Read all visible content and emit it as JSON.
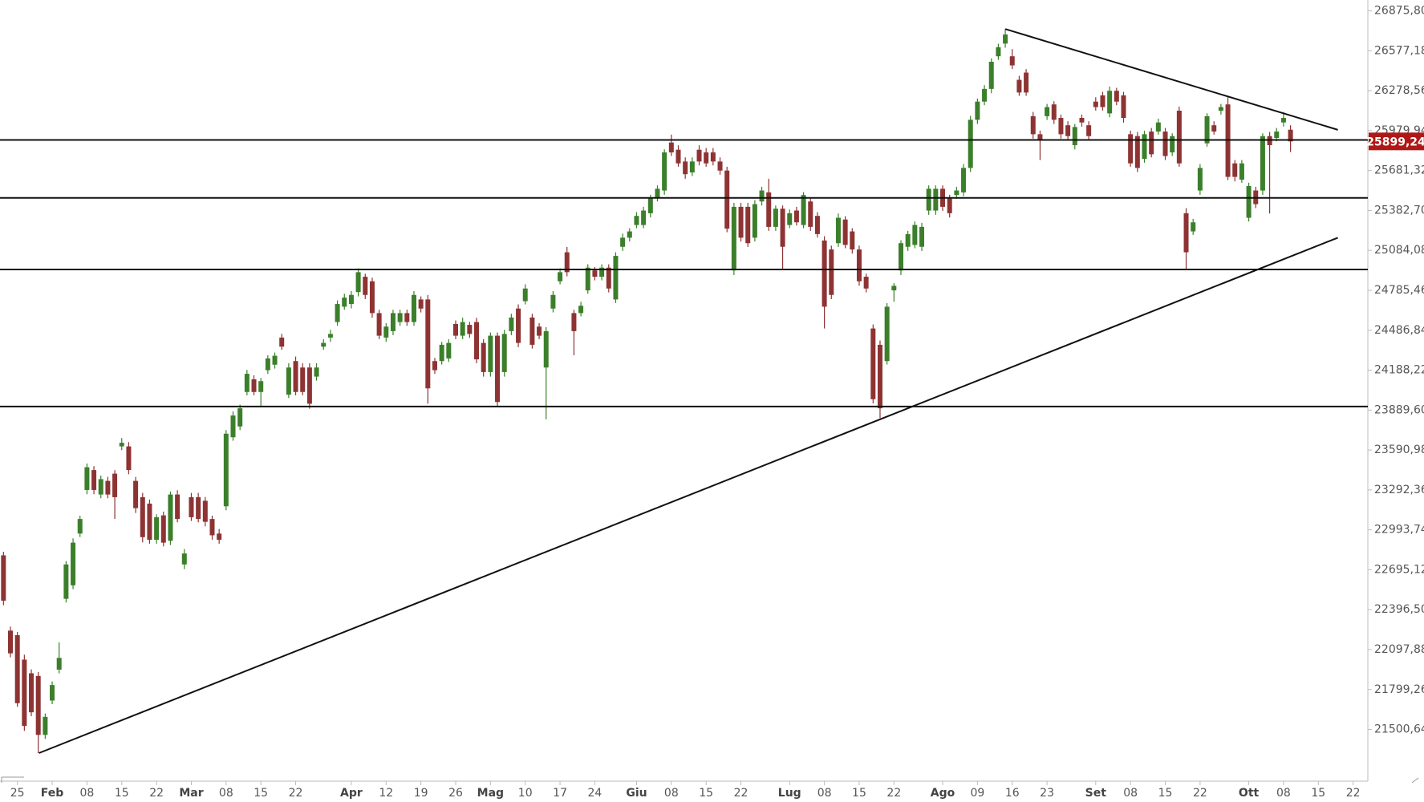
{
  "chart_data": {
    "type": "candlestick",
    "up_color": "#3b7f2b",
    "down_color": "#8e3333",
    "xlim": [
      -0.5,
      196
    ],
    "ylim": [
      21120,
      26957
    ],
    "xticks": [
      {
        "value": 2,
        "label": "25"
      },
      {
        "value": 7,
        "label": "Feb"
      },
      {
        "value": 12,
        "label": "08"
      },
      {
        "value": 17,
        "label": "15"
      },
      {
        "value": 22,
        "label": "22"
      },
      {
        "value": 27,
        "label": "Mar"
      },
      {
        "value": 32,
        "label": "08"
      },
      {
        "value": 37,
        "label": "15"
      },
      {
        "value": 42,
        "label": "22"
      },
      {
        "value": 50,
        "label": "Apr"
      },
      {
        "value": 55,
        "label": "12"
      },
      {
        "value": 60,
        "label": "19"
      },
      {
        "value": 65,
        "label": "26"
      },
      {
        "value": 70,
        "label": "Mag"
      },
      {
        "value": 75,
        "label": "10"
      },
      {
        "value": 80,
        "label": "17"
      },
      {
        "value": 85,
        "label": "24"
      },
      {
        "value": 91,
        "label": "Giu"
      },
      {
        "value": 96,
        "label": "08"
      },
      {
        "value": 101,
        "label": "15"
      },
      {
        "value": 106,
        "label": "22"
      },
      {
        "value": 113,
        "label": "Lug"
      },
      {
        "value": 118,
        "label": "08"
      },
      {
        "value": 123,
        "label": "15"
      },
      {
        "value": 128,
        "label": "22"
      },
      {
        "value": 135,
        "label": "Ago"
      },
      {
        "value": 140,
        "label": "09"
      },
      {
        "value": 145,
        "label": "16"
      },
      {
        "value": 150,
        "label": "23"
      },
      {
        "value": 157,
        "label": "Set"
      },
      {
        "value": 162,
        "label": "08"
      },
      {
        "value": 167,
        "label": "15"
      },
      {
        "value": 172,
        "label": "22"
      },
      {
        "value": 179,
        "label": "Ott"
      },
      {
        "value": 184,
        "label": "08"
      },
      {
        "value": 189,
        "label": "15"
      },
      {
        "value": 194,
        "label": "22"
      }
    ],
    "yticks": [
      {
        "value": 26875.8,
        "label": "26875,80"
      },
      {
        "value": 26577.18,
        "label": "26577,18"
      },
      {
        "value": 26278.56,
        "label": "26278,56"
      },
      {
        "value": 25979.94,
        "label": "25979,94"
      },
      {
        "value": 25681.32,
        "label": "25681,32"
      },
      {
        "value": 25382.7,
        "label": "25382,70"
      },
      {
        "value": 25084.08,
        "label": "25084,08"
      },
      {
        "value": 24785.46,
        "label": "24785,46"
      },
      {
        "value": 24486.84,
        "label": "24486,84"
      },
      {
        "value": 24188.22,
        "label": "24188,22"
      },
      {
        "value": 23889.6,
        "label": "23889,60"
      },
      {
        "value": 23590.98,
        "label": "23590,98"
      },
      {
        "value": 23292.36,
        "label": "23292,36"
      },
      {
        "value": 22993.74,
        "label": "22993,74"
      },
      {
        "value": 22695.12,
        "label": "22695,12"
      },
      {
        "value": 22396.5,
        "label": "22396,50"
      },
      {
        "value": 22097.88,
        "label": "22097,88"
      },
      {
        "value": 21799.26,
        "label": "21799,26"
      },
      {
        "value": 21500.64,
        "label": "21500,64"
      }
    ],
    "last_price_label": "25899,24",
    "levels": [
      25910,
      25477,
      24941,
      23916
    ],
    "trendlines": [
      {
        "x": [
          5.1,
          191.8
        ],
        "y": [
          21324,
          25179
        ]
      },
      {
        "x": [
          144,
          191.8
        ],
        "y": [
          26740,
          25986
        ]
      }
    ],
    "open": [
      22803,
      22240,
      22206,
      22023,
      21921,
      21901,
      21460,
      21717,
      21948,
      22478,
      22579,
      22966,
      23292,
      23441,
      23258,
      23360,
      23414,
      23618,
      23618,
      23360,
      23238,
      23190,
      22919,
      23102,
      22912,
      23258,
      22735,
      23238,
      23238,
      23211,
      23075,
      22966,
      23170,
      23686,
      23767,
      24025,
      24120,
      24025,
      24188,
      24229,
      24432,
      24005,
      24256,
      24208,
      24208,
      24140,
      24364,
      24432,
      24548,
      24663,
      24683,
      24772,
      24887,
      24853,
      24615,
      24432,
      24480,
      24548,
      24615,
      24548,
      24717,
      24717,
      24256,
      24256,
      24276,
      24534,
      24446,
      24527,
      24548,
      24392,
      24174,
      24446,
      24174,
      24480,
      24649,
      24704,
      24582,
      24514,
      24208,
      24649,
      24853,
      25070,
      24615,
      24615,
      24785,
      24934,
      24887,
      24955,
      24717,
      25111,
      25179,
      25274,
      25274,
      25362,
      25477,
      25532,
      25891,
      25837,
      25749,
      25667,
      25837,
      25817,
      25817,
      25749,
      25681,
      24934,
      25410,
      25410,
      25179,
      25450,
      25518,
      25260,
      25396,
      25274,
      25382,
      25274,
      25450,
      25342,
      25158,
      25091,
      25138,
      25315,
      25226,
      25091,
      24887,
      24500,
      24378,
      24256,
      24785,
      24934,
      25111,
      25125,
      25111,
      25382,
      25382,
      25545,
      25477,
      25498,
      25518,
      25701,
      26061,
      26197,
      26292,
      26536,
      26631,
      26536,
      26360,
      26414,
      26088,
      25953,
      26088,
      26176,
      26075,
      26020,
      25871,
      26075,
      26020,
      26197,
      26244,
      26109,
      26278,
      26244,
      25953,
      25939,
      25769,
      25973,
      25973,
      25973,
      25817,
      26129,
      25362,
      25226,
      25532,
      25885,
      26020,
      26129,
      26176,
      25735,
      25613,
      25328,
      25532,
      25532,
      25939,
      25925,
      26041,
      25987
    ],
    "high": [
      22830,
      22270,
      22230,
      22060,
      21950,
      21930,
      21620,
      21860,
      22152,
      22760,
      22930,
      23100,
      23490,
      23470,
      23400,
      23390,
      23440,
      23680,
      23650,
      23390,
      23270,
      23220,
      23110,
      23130,
      23280,
      23290,
      22850,
      23270,
      23270,
      23240,
      23100,
      23000,
      23740,
      23880,
      23930,
      24190,
      24150,
      24130,
      24300,
      24320,
      24460,
      24240,
      24290,
      24240,
      24240,
      24240,
      24420,
      24490,
      24710,
      24760,
      24780,
      24950,
      24910,
      24880,
      24640,
      24540,
      24640,
      24640,
      24640,
      24780,
      24740,
      24750,
      24280,
      24400,
      24420,
      24560,
      24580,
      24550,
      24580,
      24420,
      24470,
      24470,
      24490,
      24610,
      24680,
      24830,
      24610,
      24540,
      24510,
      24780,
      24950,
      25110,
      24640,
      24700,
      24980,
      24960,
      24980,
      24980,
      25070,
      25210,
      25250,
      25370,
      25410,
      25500,
      25570,
      25840,
      25950,
      25870,
      25780,
      25780,
      25870,
      25850,
      25850,
      25780,
      25710,
      25440,
      25440,
      25440,
      25460,
      25560,
      25620,
      25420,
      25420,
      25390,
      25410,
      25520,
      25480,
      25370,
      25190,
      25120,
      25360,
      25340,
      25250,
      25120,
      24910,
      24530,
      24410,
      24690,
      24840,
      25160,
      25230,
      25300,
      25290,
      25570,
      25570,
      25570,
      25500,
      25560,
      25730,
      26090,
      26220,
      26320,
      26520,
      26630,
      26740,
      26590,
      26390,
      26440,
      26120,
      25980,
      26180,
      26200,
      26100,
      26050,
      26030,
      26100,
      26050,
      26230,
      26270,
      26310,
      26300,
      26270,
      25980,
      25970,
      25980,
      26000,
      26070,
      26000,
      25960,
      26160,
      25400,
      25320,
      25730,
      26110,
      26050,
      26180,
      26230,
      25760,
      25760,
      25590,
      25560,
      25960,
      25970,
      26000,
      26120,
      26020
    ],
    "low": [
      22430,
      22040,
      21670,
      21490,
      21600,
      21324,
      21430,
      21690,
      21920,
      22450,
      22550,
      22940,
      23260,
      23260,
      23230,
      23230,
      23075,
      23590,
      23410,
      23120,
      22900,
      22890,
      22890,
      22870,
      22880,
      23050,
      22700,
      23060,
      23050,
      23020,
      22920,
      22890,
      23140,
      23660,
      23740,
      24000,
      24000,
      23920,
      24160,
      24200,
      24340,
      23980,
      24000,
      24000,
      23900,
      24110,
      24340,
      24400,
      24520,
      24640,
      24650,
      24740,
      24720,
      24580,
      24420,
      24400,
      24450,
      24520,
      24520,
      24520,
      24620,
      23937,
      24160,
      24230,
      24250,
      24420,
      24420,
      24430,
      24240,
      24140,
      24140,
      23920,
      24140,
      24450,
      24360,
      24680,
      24350,
      24420,
      23821,
      24620,
      24830,
      24890,
      24300,
      24590,
      24760,
      24860,
      24860,
      24770,
      24690,
      25080,
      25150,
      25250,
      25250,
      25330,
      25450,
      25500,
      25790,
      25710,
      25620,
      25640,
      25720,
      25710,
      25720,
      25650,
      25220,
      24900,
      25150,
      25110,
      25150,
      25420,
      25230,
      25230,
      24940,
      25250,
      25270,
      25250,
      25230,
      25180,
      24500,
      24720,
      25110,
      25100,
      25060,
      24820,
      24770,
      23940,
      23830,
      24230,
      24700,
      24900,
      25080,
      25100,
      25080,
      25350,
      25350,
      25380,
      25330,
      25470,
      25490,
      25670,
      26030,
      26170,
      26260,
      26510,
      26600,
      26440,
      26240,
      26240,
      25920,
      25760,
      26060,
      26030,
      25920,
      25910,
      25840,
      26010,
      25910,
      26130,
      26130,
      26080,
      26170,
      26040,
      25710,
      25670,
      25740,
      25780,
      25950,
      25760,
      25790,
      25710,
      24940,
      25200,
      25500,
      25860,
      25950,
      26100,
      25610,
      25600,
      25590,
      25300,
      25400,
      25500,
      25360,
      25900,
      26010,
      25820
    ],
    "close": [
      22464,
      22070,
      21697,
      21527,
      21629,
      21460,
      21595,
      21833,
      22036,
      22735,
      22898,
      23075,
      23462,
      23292,
      23373,
      23258,
      23238,
      23645,
      23441,
      23156,
      22939,
      22919,
      23088,
      22898,
      23258,
      23075,
      22817,
      23088,
      23075,
      23054,
      22953,
      22919,
      23713,
      23849,
      23903,
      24161,
      24025,
      24106,
      24276,
      24296,
      24364,
      24208,
      24025,
      24025,
      23937,
      24208,
      24392,
      24459,
      24683,
      24731,
      24751,
      24921,
      24751,
      24615,
      24446,
      24514,
      24615,
      24615,
      24548,
      24751,
      24649,
      24052,
      24188,
      24378,
      24392,
      24446,
      24548,
      24459,
      24269,
      24174,
      24446,
      23950,
      24459,
      24582,
      24392,
      24799,
      24378,
      24446,
      24480,
      24751,
      24921,
      24921,
      24480,
      24670,
      24955,
      24887,
      24955,
      24799,
      25043,
      25179,
      25226,
      25342,
      25382,
      25477,
      25545,
      25817,
      25817,
      25735,
      25654,
      25749,
      25749,
      25735,
      25749,
      25681,
      25247,
      25410,
      25179,
      25138,
      25430,
      25532,
      25260,
      25396,
      25111,
      25362,
      25294,
      25498,
      25260,
      25206,
      24663,
      24751,
      25328,
      25125,
      25091,
      24853,
      24799,
      23971,
      23903,
      24663,
      24819,
      25138,
      25206,
      25274,
      25260,
      25545,
      25545,
      25410,
      25362,
      25532,
      25701,
      26061,
      26197,
      26292,
      26495,
      26604,
      26699,
      26468,
      26265,
      26265,
      25953,
      25905,
      26156,
      26061,
      25953,
      25939,
      26007,
      26041,
      25939,
      26156,
      26156,
      26278,
      26197,
      26075,
      25735,
      25701,
      25953,
      25803,
      26041,
      25790,
      25939,
      25735,
      25070,
      25294,
      25701,
      26088,
      25973,
      26156,
      25634,
      25634,
      25735,
      25566,
      25430,
      25939,
      25871,
      25973,
      26075,
      25899.24
    ]
  }
}
